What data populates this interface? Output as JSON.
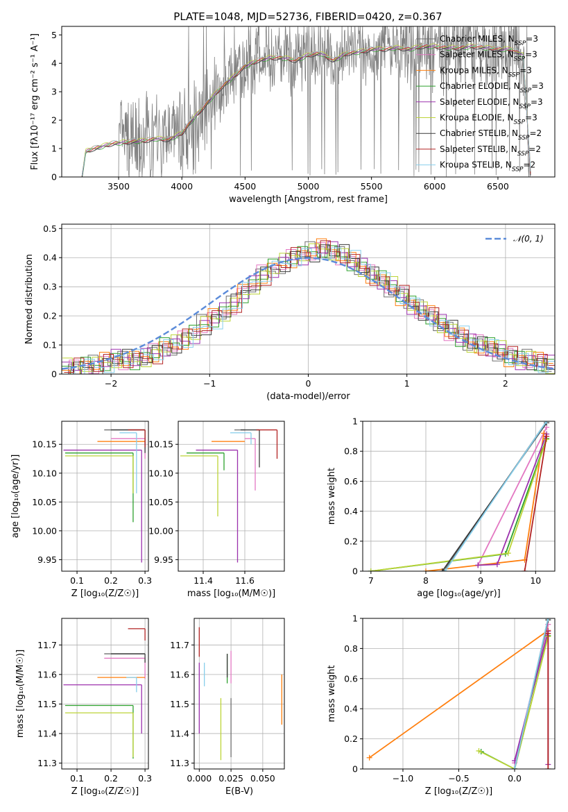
{
  "figure": {
    "title": "PLATE=1048, MJD=52736, FIBERID=0420, z=0.367"
  },
  "legend_colors": {
    "Chabrier MILES": "#6e6e6e",
    "Salpeter MILES": "#e377c2",
    "Kroupa MILES": "#ff7f0e",
    "Chabrier ELODIE": "#2ca02c",
    "Salpeter ELODIE": "#9b30ad",
    "Kroupa ELODIE": "#bcd436",
    "Chabrier STELIB": "#3a3a3a",
    "Salpeter STELIB": "#b22222",
    "Kroupa STELIB": "#87ceeb"
  },
  "chart_data": [
    {
      "id": "spectrum",
      "type": "line",
      "title": "PLATE=1048, MJD=52736, FIBERID=0420, z=0.367",
      "xlabel": "wavelength [Angstrom, rest frame]",
      "ylabel": "Flux [f_λ 10^-17 erg cm^-2 s^-1 A^-1]",
      "xlim": [
        3050,
        6950
      ],
      "ylim": [
        0,
        5.3
      ],
      "xticks": [
        3500,
        4000,
        4500,
        5000,
        5500,
        6000,
        6500
      ],
      "yticks": [
        0,
        1,
        2,
        3,
        4,
        5
      ],
      "grid": false,
      "legend_position": "top-right",
      "series": [
        {
          "name": "Chabrier MILES, N_SSP=3",
          "color": "#6e6e6e"
        },
        {
          "name": "Salpeter MILES, N_SSP=3",
          "color": "#e377c2"
        },
        {
          "name": "Kroupa MILES, N_SSP=3",
          "color": "#ff7f0e"
        },
        {
          "name": "Chabrier ELODIE, N_SSP=3",
          "color": "#2ca02c"
        },
        {
          "name": "Salpeter ELODIE, N_SSP=3",
          "color": "#9b30ad"
        },
        {
          "name": "Kroupa ELODIE, N_SSP=3",
          "color": "#bcd436"
        },
        {
          "name": "Chabrier STELIB, N_SSP=2",
          "color": "#3a3a3a"
        },
        {
          "name": "Salpeter STELIB, N_SSP=2",
          "color": "#b22222"
        },
        {
          "name": "Kroupa STELIB, N_SSP=2",
          "color": "#87ceeb"
        }
      ],
      "model_continuum": {
        "x": [
          3210,
          3240,
          3300,
          3350,
          3400,
          3450,
          3500,
          3600,
          3700,
          3800,
          3900,
          4000,
          4100,
          4200,
          4300,
          4400,
          4500,
          4600,
          4700,
          4800,
          4900,
          5000,
          5100,
          5200,
          5300,
          5400,
          5500,
          5600,
          5700,
          5800,
          5900,
          6000,
          6100,
          6200,
          6300,
          6400,
          6500,
          6600,
          6700,
          6760
        ],
        "y": [
          0.0,
          0.9,
          1.0,
          1.05,
          1.12,
          1.18,
          1.2,
          1.25,
          1.28,
          1.35,
          1.32,
          1.55,
          2.1,
          2.6,
          3.1,
          3.5,
          3.9,
          4.1,
          4.2,
          4.2,
          4.1,
          4.3,
          4.35,
          4.1,
          4.35,
          4.4,
          4.5,
          4.5,
          4.55,
          4.5,
          4.6,
          4.6,
          4.55,
          4.55,
          4.6,
          4.55,
          4.5,
          4.5,
          4.3,
          0.0
        ]
      },
      "observed": {
        "color": "#808080",
        "x_range": [
          3500,
          6760
        ],
        "note_y_range": [
          0,
          5.3
        ]
      }
    },
    {
      "id": "residuals",
      "type": "line",
      "xlabel": "(data-model)/error",
      "ylabel": "Normed distribution",
      "xlim": [
        -2.5,
        2.5
      ],
      "ylim": [
        0,
        0.515
      ],
      "xticks": [
        -2,
        -1,
        0,
        1,
        2
      ],
      "yticks": [
        0.0,
        0.1,
        0.2,
        0.3,
        0.4,
        0.5
      ],
      "grid": true,
      "legend_position": "top-right",
      "reference_label": "𝒩(0, 1)",
      "reference_color": "#5b8bd9",
      "bin_width": 0.1,
      "base_histogram": {
        "x": [
          -2.5,
          -2.4,
          -2.3,
          -2.2,
          -2.1,
          -2.0,
          -1.9,
          -1.8,
          -1.7,
          -1.6,
          -1.5,
          -1.4,
          -1.3,
          -1.2,
          -1.1,
          -1.0,
          -0.9,
          -0.8,
          -0.7,
          -0.6,
          -0.5,
          -0.4,
          -0.3,
          -0.2,
          -0.1,
          0.0,
          0.1,
          0.2,
          0.3,
          0.4,
          0.5,
          0.6,
          0.7,
          0.8,
          0.9,
          1.0,
          1.1,
          1.2,
          1.3,
          1.4,
          1.5,
          1.6,
          1.7,
          1.8,
          1.9,
          2.0,
          2.1,
          2.2,
          2.3,
          2.4
        ],
        "y": [
          0.02,
          0.02,
          0.03,
          0.03,
          0.04,
          0.05,
          0.05,
          0.05,
          0.06,
          0.07,
          0.09,
          0.1,
          0.12,
          0.14,
          0.17,
          0.19,
          0.21,
          0.24,
          0.28,
          0.31,
          0.34,
          0.36,
          0.38,
          0.4,
          0.41,
          0.42,
          0.43,
          0.42,
          0.41,
          0.39,
          0.37,
          0.34,
          0.32,
          0.3,
          0.27,
          0.24,
          0.22,
          0.2,
          0.17,
          0.15,
          0.13,
          0.11,
          0.1,
          0.09,
          0.08,
          0.06,
          0.05,
          0.05,
          0.04,
          0.03
        ]
      }
    },
    {
      "id": "age-vs-Z",
      "type": "scatter",
      "xlabel": "Z [log10(Z/Z☉)]",
      "ylabel": "age [log10(age/yr)]",
      "xlim": [
        0.055,
        0.31
      ],
      "ylim": [
        9.93,
        10.19
      ],
      "xticks": [
        0.1,
        0.2,
        0.3
      ],
      "yticks": [
        9.95,
        10.0,
        10.05,
        10.1,
        10.15
      ],
      "grid": true,
      "errorbars": [
        {
          "series": "Chabrier MILES",
          "x": 0.3,
          "y": 10.175,
          "xerr": [
            0.12,
            0
          ],
          "yerr": [
            0,
            0
          ]
        },
        {
          "series": "Salpeter MILES",
          "x": 0.3,
          "y": 10.16,
          "xerr": [
            0.1,
            0
          ],
          "yerr": [
            0.035,
            0
          ]
        },
        {
          "series": "Kroupa MILES",
          "x": 0.3,
          "y": 10.155,
          "xerr": [
            0.14,
            0
          ],
          "yerr": [
            0,
            0
          ]
        },
        {
          "series": "Chabrier ELODIE",
          "x": 0.265,
          "y": 10.135,
          "xerr": [
            0.2,
            0
          ],
          "yerr": [
            0.12,
            0
          ]
        },
        {
          "series": "Salpeter ELODIE",
          "x": 0.29,
          "y": 10.14,
          "xerr": [
            0.23,
            0
          ],
          "yerr": [
            0.195,
            0
          ]
        },
        {
          "series": "Kroupa ELODIE",
          "x": 0.265,
          "y": 10.13,
          "xerr": [
            0.2,
            0
          ],
          "yerr": [
            0.065,
            0
          ]
        },
        {
          "series": "Chabrier STELIB",
          "x": 0.3,
          "y": 10.175,
          "xerr": [
            0.1,
            0
          ],
          "yerr": [
            0.04,
            0
          ]
        },
        {
          "series": "Salpeter STELIB",
          "x": 0.3,
          "y": 10.175,
          "xerr": [
            0.05,
            0
          ],
          "yerr": [
            0.03,
            0
          ]
        },
        {
          "series": "Kroupa STELIB",
          "x": 0.275,
          "y": 10.17,
          "xerr": [
            0.05,
            0
          ],
          "yerr": [
            0.105,
            0
          ]
        }
      ]
    },
    {
      "id": "age-vs-mass",
      "type": "scatter",
      "xlabel": "mass [log10(M/M☉)]",
      "xlim": [
        11.28,
        11.79
      ],
      "ylim": [
        9.93,
        10.19
      ],
      "xticks": [
        11.4,
        11.6
      ],
      "yticks": [
        9.95,
        10.0,
        10.05,
        10.1,
        10.15
      ],
      "grid": true,
      "errorbars": [
        {
          "series": "Chabrier MILES",
          "x": 11.6,
          "y": 10.175,
          "xerr": [
            0.05,
            0
          ],
          "yerr": [
            0,
            0
          ]
        },
        {
          "series": "Salpeter MILES",
          "x": 11.65,
          "y": 10.16,
          "xerr": [
            0.05,
            0
          ],
          "yerr": [
            0.09,
            0
          ]
        },
        {
          "series": "Kroupa MILES",
          "x": 11.6,
          "y": 10.155,
          "xerr": [
            0.16,
            0
          ],
          "yerr": [
            0,
            0
          ]
        },
        {
          "series": "Chabrier ELODIE",
          "x": 11.5,
          "y": 10.135,
          "xerr": [
            0.18,
            0
          ],
          "yerr": [
            0.03,
            0
          ]
        },
        {
          "series": "Salpeter ELODIE",
          "x": 11.565,
          "y": 10.14,
          "xerr": [
            0.2,
            0
          ],
          "yerr": [
            0.195,
            0
          ]
        },
        {
          "series": "Kroupa ELODIE",
          "x": 11.47,
          "y": 10.13,
          "xerr": [
            0.18,
            0
          ],
          "yerr": [
            0.105,
            0
          ]
        },
        {
          "series": "Chabrier STELIB",
          "x": 11.67,
          "y": 10.175,
          "xerr": [
            0.09,
            0
          ],
          "yerr": [
            0.065,
            0
          ]
        },
        {
          "series": "Salpeter STELIB",
          "x": 11.755,
          "y": 10.175,
          "xerr": [
            0.1,
            0
          ],
          "yerr": [
            0.05,
            0
          ]
        },
        {
          "series": "Kroupa STELIB",
          "x": 11.63,
          "y": 10.17,
          "xerr": [
            0.1,
            0
          ],
          "yerr": [
            0.02,
            0
          ]
        }
      ]
    },
    {
      "id": "weight-vs-age",
      "type": "line",
      "ylabel": "mass weight",
      "xlabel": "age [log10(age/yr)]",
      "xlim": [
        6.85,
        10.35
      ],
      "ylim": [
        0,
        1.0
      ],
      "xticks": [
        7,
        8,
        9,
        10
      ],
      "yticks": [
        0.0,
        0.2,
        0.4,
        0.6,
        0.8,
        1.0
      ],
      "grid": true,
      "series": [
        {
          "name": "Chabrier MILES",
          "x": [
            8.33,
            10.2
          ],
          "y": [
            0.0,
            1.0
          ]
        },
        {
          "name": "Salpeter MILES",
          "x": [
            8.95,
            10.2
          ],
          "y": [
            0.04,
            0.96
          ]
        },
        {
          "name": "Kroupa MILES",
          "x": [
            8.0,
            9.8,
            10.15
          ],
          "y": [
            0.0,
            0.075,
            0.92
          ]
        },
        {
          "name": "Chabrier ELODIE",
          "x": [
            7.0,
            9.45,
            10.2
          ],
          "y": [
            0.0,
            0.115,
            0.885
          ]
        },
        {
          "name": "Salpeter ELODIE",
          "x": [
            8.95,
            9.3,
            10.2
          ],
          "y": [
            0.04,
            0.045,
            0.915
          ]
        },
        {
          "name": "Kroupa ELODIE",
          "x": [
            7.0,
            9.5,
            10.2
          ],
          "y": [
            0.0,
            0.12,
            0.88
          ]
        },
        {
          "name": "Chabrier STELIB",
          "x": [
            8.3,
            10.2
          ],
          "y": [
            0.0,
            0.99
          ]
        },
        {
          "name": "Salpeter STELIB",
          "x": [
            9.8,
            10.2
          ],
          "y": [
            0.0,
            0.9
          ]
        },
        {
          "name": "Kroupa STELIB",
          "x": [
            8.35,
            10.2
          ],
          "y": [
            0.0,
            1.0
          ]
        }
      ]
    },
    {
      "id": "mass-vs-Z",
      "type": "scatter",
      "xlabel": "Z [log10(Z/Z☉)]",
      "ylabel": "mass [log10(M/M☉)]",
      "xlim": [
        0.055,
        0.31
      ],
      "ylim": [
        11.28,
        11.79
      ],
      "xticks": [
        0.1,
        0.2,
        0.3
      ],
      "yticks": [
        11.3,
        11.4,
        11.5,
        11.6,
        11.7
      ],
      "grid": true,
      "errorbars": [
        {
          "series": "Chabrier MILES",
          "x": 0.3,
          "y": 11.67,
          "xerr": [
            0.12,
            0
          ],
          "yerr": [
            0,
            0
          ]
        },
        {
          "series": "Salpeter MILES",
          "x": 0.3,
          "y": 11.655,
          "xerr": [
            0.12,
            0
          ],
          "yerr": [
            0.07,
            0
          ]
        },
        {
          "series": "Kroupa MILES",
          "x": 0.3,
          "y": 11.59,
          "xerr": [
            0.14,
            0
          ],
          "yerr": [
            0,
            0
          ]
        },
        {
          "series": "Chabrier ELODIE",
          "x": 0.265,
          "y": 11.495,
          "xerr": [
            0.2,
            0
          ],
          "yerr": [
            0.18,
            0
          ]
        },
        {
          "series": "Salpeter ELODIE",
          "x": 0.29,
          "y": 11.565,
          "xerr": [
            0.23,
            0
          ],
          "yerr": [
            0.165,
            0
          ]
        },
        {
          "series": "Kroupa ELODIE",
          "x": 0.265,
          "y": 11.47,
          "xerr": [
            0.2,
            0
          ],
          "yerr": [
            0.15,
            0
          ]
        },
        {
          "series": "Chabrier STELIB",
          "x": 0.3,
          "y": 11.67,
          "xerr": [
            0.1,
            0
          ],
          "yerr": [
            0.03,
            0
          ]
        },
        {
          "series": "Salpeter STELIB",
          "x": 0.3,
          "y": 11.755,
          "xerr": [
            0.05,
            0
          ],
          "yerr": [
            0.04,
            0
          ]
        },
        {
          "series": "Kroupa STELIB",
          "x": 0.275,
          "y": 11.59,
          "xerr": [
            0.03,
            0
          ],
          "yerr": [
            0.05,
            0
          ]
        }
      ]
    },
    {
      "id": "mass-vs-EBV",
      "type": "scatter",
      "xlabel": "E(B-V)",
      "xlim": [
        -0.004,
        0.067
      ],
      "ylim": [
        11.28,
        11.79
      ],
      "xticks": [
        0.0,
        0.025,
        0.05
      ],
      "yticks": [
        11.3,
        11.4,
        11.5,
        11.6,
        11.7
      ],
      "grid": true,
      "errorbars": [
        {
          "series": "Chabrier MILES",
          "x": 0.025,
          "y": 11.32,
          "yerr": [
            0,
            0.2
          ]
        },
        {
          "series": "Salpeter MILES",
          "x": 0.025,
          "y": 11.62,
          "yerr": [
            0.05,
            0.06
          ]
        },
        {
          "series": "Kroupa MILES",
          "x": 0.065,
          "y": 11.43,
          "yerr": [
            0,
            0.17
          ]
        },
        {
          "series": "Chabrier ELODIE",
          "x": 0.022,
          "y": 11.59,
          "yerr": [
            0.02,
            0.08
          ]
        },
        {
          "series": "Salpeter ELODIE",
          "x": 0.0,
          "y": 11.58,
          "yerr": [
            0.18,
            0.06
          ]
        },
        {
          "series": "Kroupa ELODIE",
          "x": 0.017,
          "y": 11.31,
          "yerr": [
            0,
            0.21
          ]
        },
        {
          "series": "Chabrier STELIB",
          "x": 0.022,
          "y": 11.62,
          "yerr": [
            0.03,
            0.05
          ]
        },
        {
          "series": "Salpeter STELIB",
          "x": 0.0,
          "y": 11.72,
          "yerr": [
            0.06,
            0.04
          ]
        },
        {
          "series": "Kroupa STELIB",
          "x": 0.004,
          "y": 11.58,
          "yerr": [
            0.02,
            0.06
          ]
        }
      ]
    },
    {
      "id": "weight-vs-Z",
      "type": "line",
      "xlabel": "Z [log10(Z/Z☉)]",
      "ylabel": "mass weight",
      "xlim": [
        -1.36,
        0.36
      ],
      "ylim": [
        0,
        1.0
      ],
      "xticks": [
        -1.0,
        -0.5,
        0.0
      ],
      "yticks": [
        0.0,
        0.2,
        0.4,
        0.6,
        0.8,
        1.0
      ],
      "grid": true,
      "series": [
        {
          "name": "Chabrier MILES",
          "x": [
            0.0,
            0.3
          ],
          "y": [
            0.0,
            1.0
          ]
        },
        {
          "name": "Salpeter MILES",
          "x": [
            0.0,
            0.3
          ],
          "y": [
            0.04,
            0.96
          ]
        },
        {
          "name": "Kroupa MILES",
          "x": [
            -1.3,
            0.3
          ],
          "y": [
            0.075,
            0.92
          ]
        },
        {
          "name": "Chabrier ELODIE",
          "x": [
            -0.3,
            0.0,
            0.3
          ],
          "y": [
            0.115,
            0.0,
            0.885
          ]
        },
        {
          "name": "Salpeter ELODIE",
          "x": [
            0.0,
            0.3,
            0.3
          ],
          "y": [
            0.055,
            0.915,
            0.03
          ]
        },
        {
          "name": "Kroupa ELODIE",
          "x": [
            -0.32,
            0.0,
            0.3
          ],
          "y": [
            0.12,
            0.0,
            0.88
          ]
        },
        {
          "name": "Chabrier STELIB",
          "x": [
            0.0,
            0.3
          ],
          "y": [
            0.0,
            0.99
          ]
        },
        {
          "name": "Salpeter STELIB",
          "x": [
            0.3,
            0.3
          ],
          "y": [
            0.0,
            0.9
          ]
        },
        {
          "name": "Kroupa STELIB",
          "x": [
            0.0,
            0.3
          ],
          "y": [
            0.0,
            1.0
          ]
        }
      ]
    }
  ]
}
